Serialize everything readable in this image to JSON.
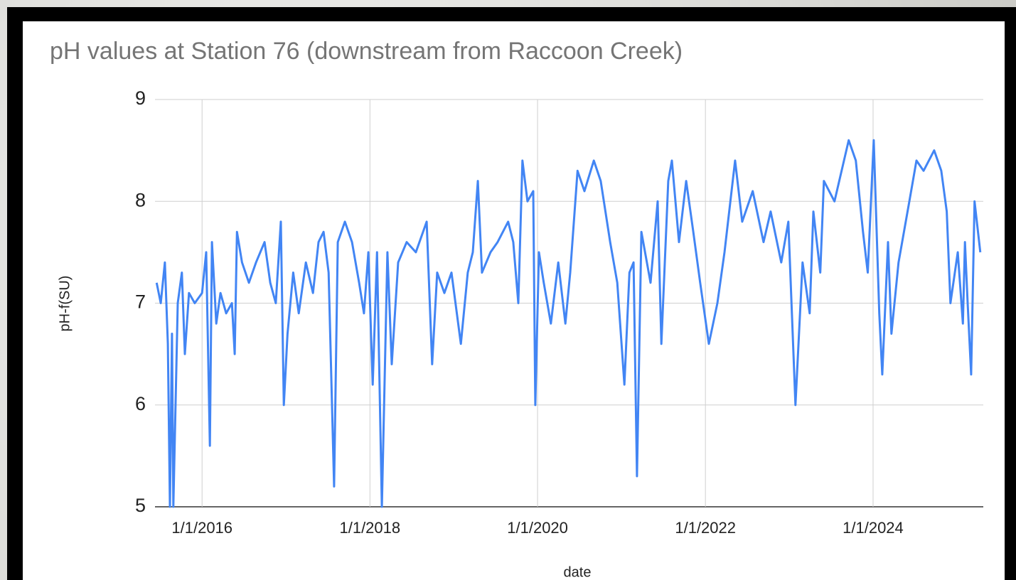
{
  "chart_data": {
    "type": "line",
    "title": "pH values at Station 76 (downstream from Raccoon Creek)",
    "x_label": "date",
    "y_label": "pH-f(SU)",
    "xlim": [
      "2015-06-10",
      "2025-04-25"
    ],
    "xticks": [
      {
        "value": "2016-01-01",
        "label": "1/1/2016"
      },
      {
        "value": "2018-01-01",
        "label": "1/1/2018"
      },
      {
        "value": "2020-01-01",
        "label": "1/1/2020"
      },
      {
        "value": "2022-01-01",
        "label": "1/1/2022"
      },
      {
        "value": "2024-01-01",
        "label": "1/1/2024"
      }
    ],
    "ylim": [
      5,
      9
    ],
    "yticks": [
      5,
      6,
      7,
      8,
      9
    ],
    "grid": true,
    "x": [
      "2015-06-17",
      "2015-07-05",
      "2015-07-23",
      "2015-08-05",
      "2015-08-14",
      "2015-08-23",
      "2015-08-29",
      "2015-09-17",
      "2015-10-05",
      "2015-10-18",
      "2015-11-05",
      "2015-11-30",
      "2016-01-01",
      "2016-01-19",
      "2016-02-04",
      "2016-02-13",
      "2016-03-03",
      "2016-03-21",
      "2016-04-15",
      "2016-05-10",
      "2016-05-22",
      "2016-06-01",
      "2016-06-23",
      "2016-07-23",
      "2016-08-23",
      "2016-09-29",
      "2016-10-24",
      "2016-11-17",
      "2016-12-09",
      "2016-12-22",
      "2017-01-07",
      "2017-02-01",
      "2017-02-25",
      "2017-03-28",
      "2017-04-28",
      "2017-05-22",
      "2017-06-13",
      "2017-07-05",
      "2017-07-29",
      "2017-08-14",
      "2017-09-14",
      "2017-10-15",
      "2017-11-15",
      "2017-12-06",
      "2017-12-25",
      "2018-01-13",
      "2018-02-01",
      "2018-02-22",
      "2018-03-18",
      "2018-04-06",
      "2018-05-04",
      "2018-06-10",
      "2018-07-20",
      "2018-09-05",
      "2018-09-29",
      "2018-10-21",
      "2018-11-21",
      "2018-12-22",
      "2019-02-01",
      "2019-03-03",
      "2019-03-25",
      "2019-04-16",
      "2019-05-04",
      "2019-06-10",
      "2019-07-11",
      "2019-08-26",
      "2019-09-17",
      "2019-10-09",
      "2019-10-27",
      "2019-11-18",
      "2019-12-13",
      "2019-12-22",
      "2020-01-07",
      "2020-01-28",
      "2020-02-28",
      "2020-03-31",
      "2020-05-01",
      "2020-05-22",
      "2020-06-23",
      "2020-07-23",
      "2020-09-02",
      "2020-10-02",
      "2020-11-12",
      "2020-12-13",
      "2021-01-13",
      "2021-02-04",
      "2021-02-22",
      "2021-03-09",
      "2021-03-28",
      "2021-05-07",
      "2021-06-07",
      "2021-06-23",
      "2021-07-23",
      "2021-08-08",
      "2021-09-08",
      "2021-10-09",
      "2021-11-09",
      "2021-12-09",
      "2022-01-16",
      "2022-02-22",
      "2022-03-25",
      "2022-05-10",
      "2022-06-10",
      "2022-07-26",
      "2022-09-11",
      "2022-10-12",
      "2022-11-27",
      "2022-12-28",
      "2023-01-28",
      "2023-02-28",
      "2023-03-31",
      "2023-04-16",
      "2023-05-16",
      "2023-06-01",
      "2023-07-17",
      "2023-08-17",
      "2023-09-17",
      "2023-10-18",
      "2023-11-18",
      "2023-12-09",
      "2024-01-04",
      "2024-01-28",
      "2024-02-10",
      "2024-03-06",
      "2024-03-21",
      "2024-04-21",
      "2024-06-07",
      "2024-07-08",
      "2024-08-08",
      "2024-09-23",
      "2024-10-24",
      "2024-11-17",
      "2024-12-03",
      "2025-01-04",
      "2025-01-26",
      "2025-02-04",
      "2025-02-16",
      "2025-03-03",
      "2025-03-18",
      "2025-04-12"
    ],
    "series": [
      {
        "name": "pH-f(SU)",
        "color": "#4285f4",
        "values": [
          7.2,
          7.0,
          7.4,
          6.6,
          5.0,
          6.7,
          5.0,
          7.0,
          7.3,
          6.5,
          7.1,
          7.0,
          7.1,
          7.5,
          5.6,
          7.6,
          6.8,
          7.1,
          6.9,
          7.0,
          6.5,
          7.7,
          7.4,
          7.2,
          7.4,
          7.6,
          7.2,
          7.0,
          7.8,
          6.0,
          6.7,
          7.3,
          6.9,
          7.4,
          7.1,
          7.6,
          7.7,
          7.3,
          5.2,
          7.6,
          7.8,
          7.6,
          7.2,
          6.9,
          7.5,
          6.2,
          7.5,
          5.0,
          7.5,
          6.4,
          7.4,
          7.6,
          7.5,
          7.8,
          6.4,
          7.3,
          7.1,
          7.3,
          6.6,
          7.3,
          7.5,
          8.2,
          7.3,
          7.5,
          7.6,
          7.8,
          7.6,
          7.0,
          8.4,
          8.0,
          8.1,
          6.0,
          7.5,
          7.2,
          6.8,
          7.4,
          6.8,
          7.3,
          8.3,
          8.1,
          8.4,
          8.2,
          7.6,
          7.2,
          6.2,
          7.3,
          7.4,
          5.3,
          7.7,
          7.2,
          8.0,
          6.6,
          8.2,
          8.4,
          7.6,
          8.2,
          7.7,
          7.2,
          6.6,
          7.0,
          7.5,
          8.4,
          7.8,
          8.1,
          7.6,
          7.9,
          7.4,
          7.8,
          6.0,
          7.4,
          6.9,
          7.9,
          7.3,
          8.2,
          8.0,
          8.3,
          8.6,
          8.4,
          7.7,
          7.3,
          8.6,
          6.9,
          6.3,
          7.6,
          6.7,
          7.4,
          8.0,
          8.4,
          8.3,
          8.5,
          8.3,
          7.9,
          7.0,
          7.5,
          6.8,
          7.6,
          7.0,
          6.3,
          8.0,
          7.5
        ]
      }
    ]
  }
}
